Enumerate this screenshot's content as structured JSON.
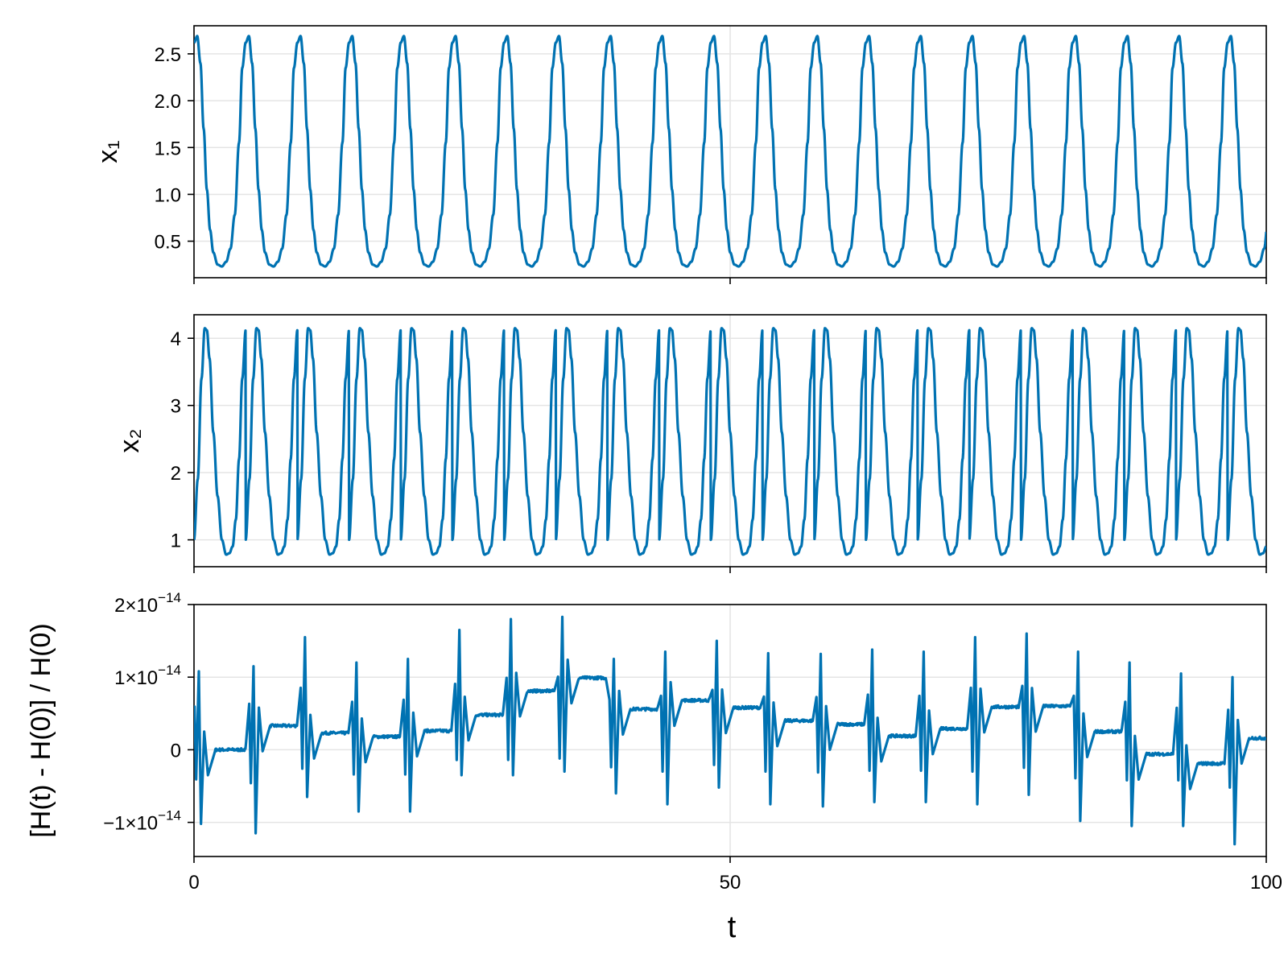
{
  "chart_data": [
    {
      "type": "line",
      "panel": "top",
      "xlabel": "",
      "ylabel": "x₁",
      "xlim": [
        0,
        100
      ],
      "ylim": [
        0.11,
        2.8
      ],
      "x_ticks": [
        0,
        50,
        100
      ],
      "y_ticks": [
        0.5,
        1.0,
        1.5,
        2.0,
        2.5
      ],
      "y_tick_labels": [
        "0.5",
        "1.0",
        "1.5",
        "2.0",
        "2.5"
      ],
      "grid": true,
      "color": "#0072b2",
      "series": [
        {
          "signal": "periodic",
          "period": 4.82,
          "x": [
            0,
            0.3,
            0.6,
            0.9,
            1.2,
            1.5,
            1.8,
            2.2,
            2.6,
            3.0,
            3.4,
            3.8,
            4.2,
            4.5,
            4.82
          ],
          "values": [
            2.62,
            2.69,
            2.4,
            1.7,
            1.05,
            0.62,
            0.38,
            0.25,
            0.23,
            0.28,
            0.42,
            0.78,
            1.55,
            2.35,
            2.62
          ],
          "x_end": 100,
          "y_end": 0.36
        }
      ]
    },
    {
      "type": "line",
      "panel": "middle",
      "xlabel": "",
      "ylabel": "x₂",
      "xlim": [
        0,
        100
      ],
      "ylim": [
        0.6,
        4.35
      ],
      "x_ticks": [
        0,
        50,
        100
      ],
      "y_ticks": [
        1,
        2,
        3,
        4
      ],
      "y_tick_labels": [
        "1",
        "2",
        "3",
        "4"
      ],
      "grid": true,
      "color": "#0072b2",
      "series": [
        {
          "signal": "periodic",
          "period": 4.82,
          "x": [
            0,
            0.35,
            0.7,
            1.0,
            1.2,
            1.45,
            1.8,
            2.2,
            2.6,
            3.0,
            3.3,
            3.6,
            3.9,
            4.2,
            4.5,
            4.82
          ],
          "values": [
            1.0,
            1.9,
            3.4,
            4.15,
            4.12,
            3.7,
            2.6,
            1.65,
            1.0,
            0.78,
            0.8,
            0.9,
            1.3,
            2.2,
            3.4,
            4.12
          ],
          "x_start_value": 1.0,
          "x_end": 100,
          "y_end": 1.1
        }
      ]
    },
    {
      "type": "line",
      "panel": "bottom",
      "xlabel": "t",
      "ylabel": "[H(t) - H(0)] / H(0)",
      "xlim": [
        0,
        100
      ],
      "ylim": [
        -1.47e-14,
        2e-14
      ],
      "x_ticks": [
        0,
        50,
        100
      ],
      "x_tick_labels": [
        "0",
        "50",
        "100"
      ],
      "y_ticks": [
        -1e-14,
        0,
        1e-14,
        2e-14
      ],
      "y_tick_labels": [
        "−1×10",
        "0",
        "1×10",
        "2×10"
      ],
      "y_tick_exponent": "−14",
      "grid": true,
      "color": "#0072b2",
      "series": [
        {
          "signal": "energy error with spikes every period",
          "spike_times": [
            0.6,
            5.7,
            10.5,
            15.3,
            20.1,
            24.9,
            29.7,
            34.5,
            39.3,
            44.1,
            48.9,
            53.7,
            58.6,
            63.4,
            68.2,
            73.0,
            77.8,
            82.6,
            87.4,
            92.2,
            97.0
          ],
          "plateau_levels": [
            0.0,
            0.0,
            3.3e-15,
            2.3e-15,
            1.8e-15,
            2.6e-15,
            4.8e-15,
            8.1e-15,
            9.9e-15,
            5.6e-15,
            6.8e-15,
            5.8e-15,
            4e-15,
            3.5e-15,
            1.9e-15,
            2.9e-15,
            5.9e-15,
            6e-15,
            2.5e-15,
            -6e-16,
            -1.9e-15,
            1.6e-15
          ],
          "spike_highs": [
            1.08e-14,
            1.15e-14,
            1.55e-14,
            1.2e-14,
            1.25e-14,
            1.65e-14,
            1.8e-14,
            1.83e-14,
            1.25e-14,
            1.35e-14,
            1.5e-14,
            1.33e-14,
            1.32e-14,
            1.38e-14,
            1.35e-14,
            1.55e-14,
            1.6e-14,
            1.35e-14,
            1.2e-14,
            1.05e-14,
            1e-14
          ],
          "spike_lows": [
            -1.02e-14,
            -1.15e-14,
            -6.5e-15,
            -8.5e-15,
            -8.5e-15,
            -3.5e-15,
            -3.5e-15,
            -3e-15,
            -6e-15,
            -7.5e-15,
            -5.2e-15,
            -7.5e-15,
            -7.8e-15,
            -7.2e-15,
            -7.2e-15,
            -7.5e-15,
            -6.2e-15,
            -9.8e-15,
            -1.05e-14,
            -1.05e-14,
            -1.3e-14
          ]
        }
      ]
    }
  ]
}
